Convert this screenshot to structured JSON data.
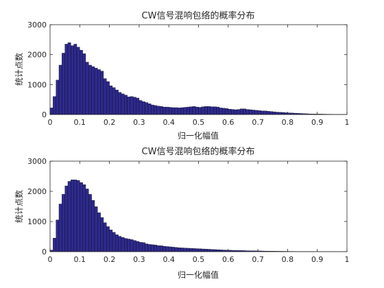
{
  "style": {
    "bar_fill": "#2e2a8e",
    "bar_edge": "#000000",
    "axis_color": "#262626",
    "background": "#ffffff"
  },
  "chart_data": [
    {
      "type": "bar",
      "title": "CW信号混响包络的概率分布",
      "xlabel": "归一化幅值",
      "ylabel": "统计点数",
      "xlim": [
        0,
        1
      ],
      "ylim": [
        0,
        3000
      ],
      "xticks": [
        "0",
        "0.1",
        "0.2",
        "0.3",
        "0.4",
        "0.5",
        "0.6",
        "0.7",
        "0.8",
        "0.9",
        "1"
      ],
      "yticks": [
        "0",
        "1000",
        "2000",
        "3000"
      ],
      "grid": false,
      "bin_width": 0.01,
      "bin_start": 0,
      "values": [
        220,
        600,
        1150,
        1650,
        2050,
        2350,
        2400,
        2300,
        2350,
        2250,
        2150,
        2030,
        1750,
        1650,
        1600,
        1550,
        1500,
        1450,
        1200,
        1100,
        960,
        900,
        820,
        740,
        690,
        650,
        590,
        600,
        580,
        550,
        470,
        430,
        400,
        360,
        320,
        300,
        280,
        270,
        250,
        250,
        240,
        230,
        230,
        220,
        230,
        240,
        250,
        260,
        270,
        250,
        240,
        260,
        270,
        270,
        260,
        260,
        250,
        220,
        210,
        200,
        180,
        170,
        160,
        170,
        190,
        190,
        170,
        160,
        150,
        140,
        130,
        120,
        120,
        110,
        100,
        90,
        80,
        75,
        70,
        60,
        55,
        50,
        45,
        40,
        35,
        30,
        25,
        20,
        18,
        16,
        15,
        14,
        12,
        10,
        9,
        8,
        7,
        6,
        5,
        5
      ]
    },
    {
      "type": "bar",
      "title": "CW信号混响包络的概率分布",
      "xlabel": "归一化幅值",
      "ylabel": "统计点数",
      "xlim": [
        0,
        1
      ],
      "ylim": [
        0,
        3000
      ],
      "xticks": [
        "0",
        "0.1",
        "0.2",
        "0.3",
        "0.4",
        "0.5",
        "0.6",
        "0.7",
        "0.8",
        "0.9",
        "1"
      ],
      "yticks": [
        "0",
        "1000",
        "2000",
        "3000"
      ],
      "grid": false,
      "bin_width": 0.01,
      "bin_start": 0,
      "values": [
        50,
        450,
        1050,
        1580,
        1900,
        2180,
        2330,
        2380,
        2380,
        2360,
        2290,
        2220,
        2080,
        1900,
        1700,
        1490,
        1290,
        1130,
        960,
        830,
        720,
        640,
        560,
        510,
        470,
        440,
        420,
        400,
        370,
        340,
        310,
        300,
        260,
        240,
        230,
        220,
        200,
        195,
        180,
        170,
        160,
        150,
        140,
        130,
        125,
        120,
        115,
        110,
        105,
        100,
        95,
        90,
        85,
        80,
        75,
        70,
        65,
        60,
        55,
        50,
        48,
        45,
        42,
        40,
        38,
        35,
        32,
        30,
        28,
        26,
        24,
        22,
        20,
        18,
        16,
        15,
        14,
        13,
        12,
        11,
        10,
        9,
        8,
        7,
        6,
        5,
        5,
        4,
        4,
        3,
        3,
        3,
        2,
        2,
        2,
        2,
        2,
        1,
        1,
        1
      ]
    }
  ]
}
